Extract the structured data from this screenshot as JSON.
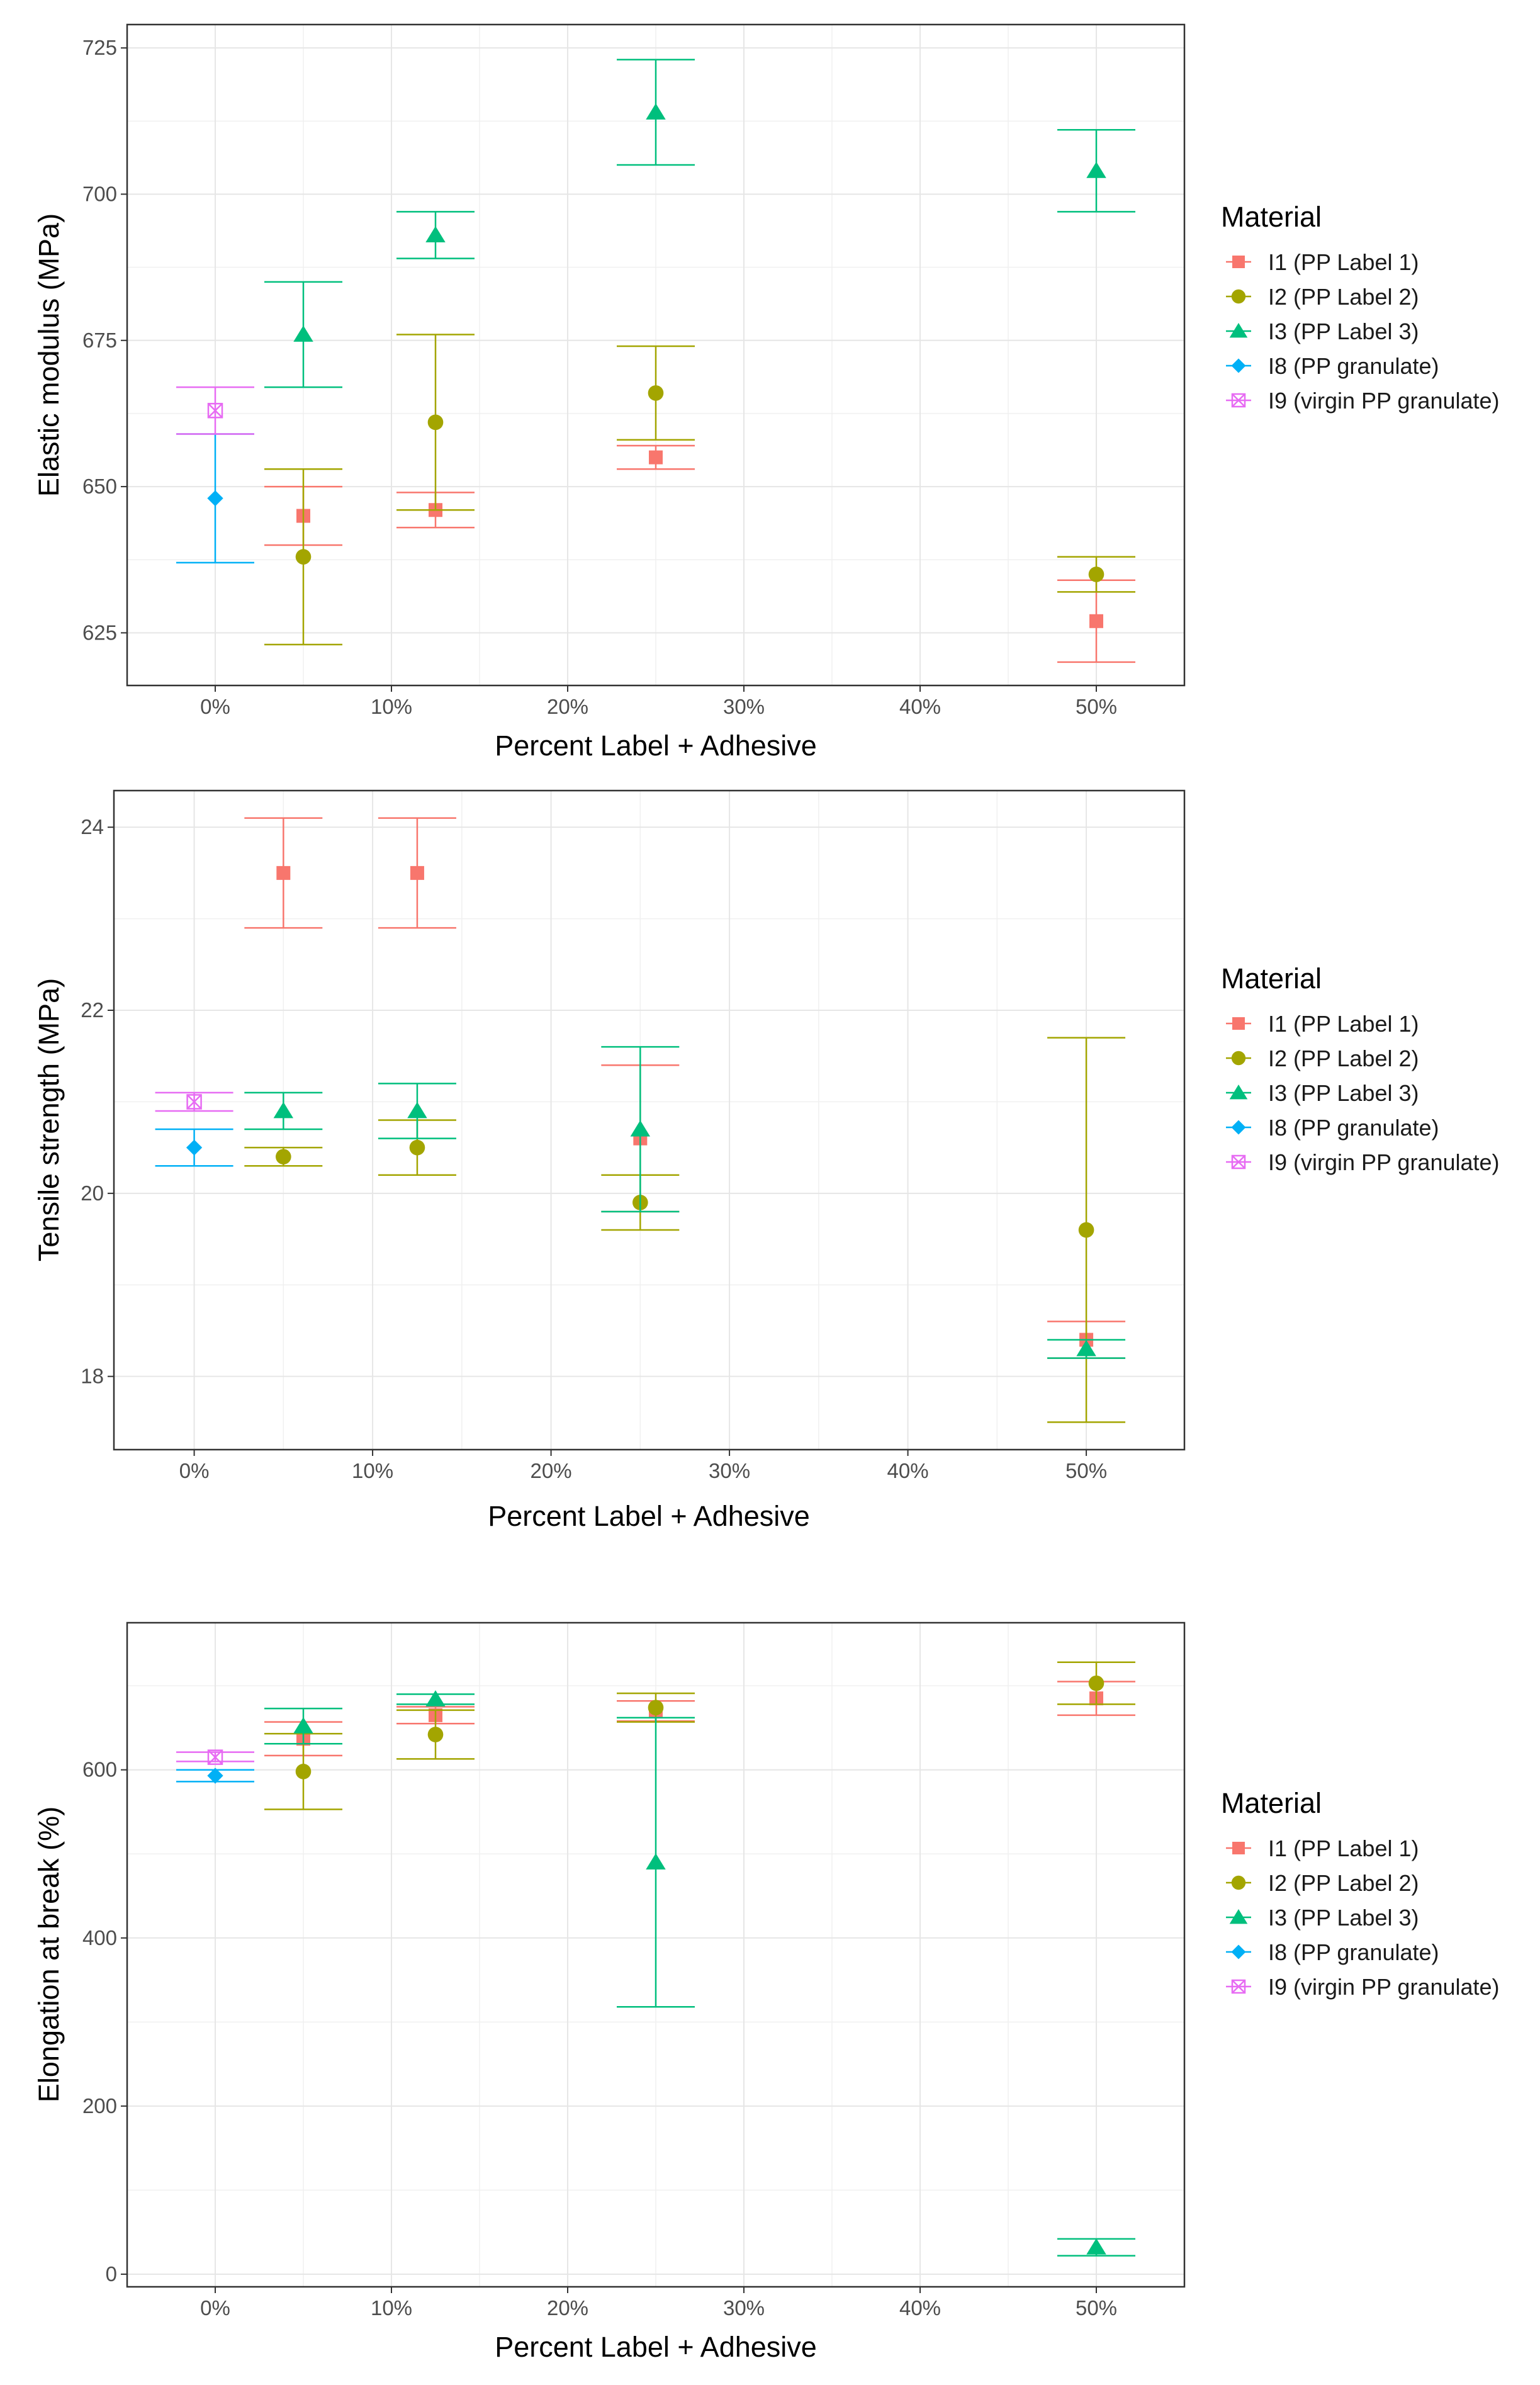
{
  "legend": {
    "title": "Material",
    "entries": [
      {
        "key": "I1",
        "label": "I1 (PP Label 1)",
        "color": "#F8766D",
        "shape": "square"
      },
      {
        "key": "I2",
        "label": "I2 (PP Label 2)",
        "color": "#A3A500",
        "shape": "circle"
      },
      {
        "key": "I3",
        "label": "I3 (PP Label 3)",
        "color": "#00BF7D",
        "shape": "triangle"
      },
      {
        "key": "I8",
        "label": "I8 (PP granulate)",
        "color": "#00B0F6",
        "shape": "diamond"
      },
      {
        "key": "I9",
        "label": "I9 (virgin PP granulate)",
        "color": "#E76BF3",
        "shape": "boxed-x"
      }
    ]
  },
  "chart_data": [
    {
      "type": "scatter",
      "id": "modulus",
      "title": "",
      "xlabel": "Percent Label + Adhesive",
      "ylabel": "Elastic modulus (MPa)",
      "xlim": [
        -5,
        55
      ],
      "ylim": [
        616,
        729
      ],
      "x_ticks": [
        0,
        10,
        20,
        30,
        40,
        50
      ],
      "x_tick_labels": [
        "0%",
        "10%",
        "20%",
        "30%",
        "40%",
        "50%"
      ],
      "y_ticks": [
        625,
        650,
        675,
        700,
        725
      ],
      "y_tick_labels": [
        "625",
        "650",
        "675",
        "700",
        "725"
      ],
      "series": [
        {
          "name": "I1 (PP Label 1)",
          "points": [
            {
              "x": 5,
              "y": 645,
              "lo": 640,
              "hi": 650
            },
            {
              "x": 12.5,
              "y": 646,
              "lo": 643,
              "hi": 649
            },
            {
              "x": 25,
              "y": 655,
              "lo": 653,
              "hi": 657
            },
            {
              "x": 50,
              "y": 627,
              "lo": 620,
              "hi": 634
            }
          ]
        },
        {
          "name": "I2 (PP Label 2)",
          "points": [
            {
              "x": 5,
              "y": 638,
              "lo": 623,
              "hi": 653
            },
            {
              "x": 12.5,
              "y": 661,
              "lo": 646,
              "hi": 676
            },
            {
              "x": 25,
              "y": 666,
              "lo": 658,
              "hi": 674
            },
            {
              "x": 50,
              "y": 635,
              "lo": 632,
              "hi": 638
            }
          ]
        },
        {
          "name": "I3 (PP Label 3)",
          "points": [
            {
              "x": 5,
              "y": 676,
              "lo": 667,
              "hi": 685
            },
            {
              "x": 12.5,
              "y": 693,
              "lo": 689,
              "hi": 697
            },
            {
              "x": 25,
              "y": 714,
              "lo": 705,
              "hi": 723
            },
            {
              "x": 50,
              "y": 704,
              "lo": 697,
              "hi": 711
            }
          ]
        },
        {
          "name": "I8 (PP granulate)",
          "points": [
            {
              "x": 0,
              "y": 648,
              "lo": 637,
              "hi": 659
            }
          ]
        },
        {
          "name": "I9 (virgin PP granulate)",
          "points": [
            {
              "x": 0,
              "y": 663,
              "lo": 659,
              "hi": 667
            }
          ]
        }
      ]
    },
    {
      "type": "scatter",
      "id": "tensile",
      "title": "",
      "xlabel": "Percent Label + Adhesive",
      "ylabel": "Tensile strength (MPa)",
      "xlim": [
        -4.5,
        55.5
      ],
      "ylim": [
        17.2,
        24.4
      ],
      "x_ticks": [
        0,
        10,
        20,
        30,
        40,
        50
      ],
      "x_tick_labels": [
        "0%",
        "10%",
        "20%",
        "30%",
        "40%",
        "50%"
      ],
      "y_ticks": [
        18,
        20,
        22,
        24
      ],
      "y_tick_labels": [
        "18",
        "20",
        "22",
        "24"
      ],
      "series": [
        {
          "name": "I1 (PP Label 1)",
          "points": [
            {
              "x": 5,
              "y": 23.5,
              "lo": 22.9,
              "hi": 24.1
            },
            {
              "x": 12.5,
              "y": 23.5,
              "lo": 22.9,
              "hi": 24.1
            },
            {
              "x": 25,
              "y": 20.6,
              "lo": 19.8,
              "hi": 21.4
            },
            {
              "x": 50,
              "y": 18.4,
              "lo": 18.2,
              "hi": 18.6
            }
          ]
        },
        {
          "name": "I2 (PP Label 2)",
          "points": [
            {
              "x": 5,
              "y": 20.4,
              "lo": 20.3,
              "hi": 20.5
            },
            {
              "x": 12.5,
              "y": 20.5,
              "lo": 20.2,
              "hi": 20.8
            },
            {
              "x": 25,
              "y": 19.9,
              "lo": 19.6,
              "hi": 20.2
            },
            {
              "x": 50,
              "y": 19.6,
              "lo": 17.5,
              "hi": 21.7
            }
          ]
        },
        {
          "name": "I3 (PP Label 3)",
          "points": [
            {
              "x": 5,
              "y": 20.9,
              "lo": 20.7,
              "hi": 21.1
            },
            {
              "x": 12.5,
              "y": 20.9,
              "lo": 20.6,
              "hi": 21.2
            },
            {
              "x": 25,
              "y": 20.7,
              "lo": 19.8,
              "hi": 21.6
            },
            {
              "x": 50,
              "y": 18.3,
              "lo": 18.2,
              "hi": 18.4
            }
          ]
        },
        {
          "name": "I8 (PP granulate)",
          "points": [
            {
              "x": 0,
              "y": 20.5,
              "lo": 20.3,
              "hi": 20.7
            }
          ]
        },
        {
          "name": "I9 (virgin PP granulate)",
          "points": [
            {
              "x": 0,
              "y": 21.0,
              "lo": 20.9,
              "hi": 21.1
            }
          ]
        }
      ]
    },
    {
      "type": "scatter",
      "id": "elongation",
      "title": "",
      "xlabel": "Percent Label + Adhesive",
      "ylabel": "Elongation at break (%)",
      "xlim": [
        -5,
        55
      ],
      "ylim": [
        -15,
        775
      ],
      "x_ticks": [
        0,
        10,
        20,
        30,
        40,
        50
      ],
      "x_tick_labels": [
        "0%",
        "10%",
        "20%",
        "30%",
        "40%",
        "50%"
      ],
      "y_ticks": [
        0,
        200,
        400,
        600
      ],
      "y_tick_labels": [
        "0",
        "200",
        "400",
        "600"
      ],
      "series": [
        {
          "name": "I1 (PP Label 1)",
          "points": [
            {
              "x": 5,
              "y": 637,
              "lo": 617,
              "hi": 657
            },
            {
              "x": 12.5,
              "y": 665,
              "lo": 655,
              "hi": 675
            },
            {
              "x": 25,
              "y": 670,
              "lo": 658,
              "hi": 682
            },
            {
              "x": 50,
              "y": 685,
              "lo": 665,
              "hi": 705
            }
          ]
        },
        {
          "name": "I2 (PP Label 2)",
          "points": [
            {
              "x": 5,
              "y": 598,
              "lo": 553,
              "hi": 643
            },
            {
              "x": 12.5,
              "y": 642,
              "lo": 613,
              "hi": 671
            },
            {
              "x": 25,
              "y": 674,
              "lo": 657,
              "hi": 691
            },
            {
              "x": 50,
              "y": 703,
              "lo": 678,
              "hi": 728
            }
          ]
        },
        {
          "name": "I3 (PP Label 3)",
          "points": [
            {
              "x": 5,
              "y": 652,
              "lo": 631,
              "hi": 673
            },
            {
              "x": 12.5,
              "y": 684,
              "lo": 678,
              "hi": 690
            },
            {
              "x": 25,
              "y": 490,
              "lo": 318,
              "hi": 662
            },
            {
              "x": 50,
              "y": 32,
              "lo": 22,
              "hi": 42
            }
          ]
        },
        {
          "name": "I8 (PP granulate)",
          "points": [
            {
              "x": 0,
              "y": 593,
              "lo": 586,
              "hi": 600
            }
          ]
        },
        {
          "name": "I9 (virgin PP granulate)",
          "points": [
            {
              "x": 0,
              "y": 615,
              "lo": 610,
              "hi": 621
            }
          ]
        }
      ]
    }
  ]
}
